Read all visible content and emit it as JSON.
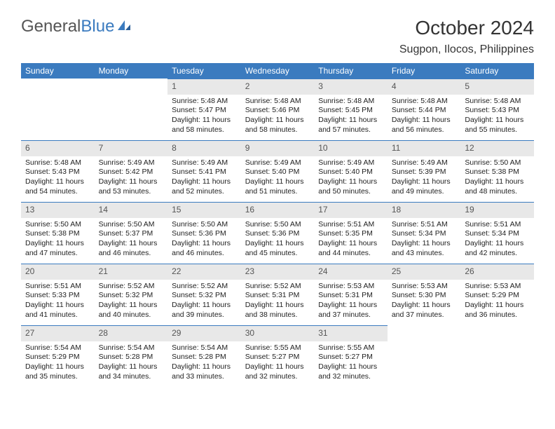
{
  "brand": {
    "part1": "General",
    "part2": "Blue"
  },
  "title": "October 2024",
  "location": "Sugpon, Ilocos, Philippines",
  "colors": {
    "header_bg": "#3b7bbf",
    "header_text": "#ffffff",
    "daynum_bg": "#e8e8e8",
    "border": "#3b7bbf",
    "page_bg": "#ffffff"
  },
  "dow": [
    "Sunday",
    "Monday",
    "Tuesday",
    "Wednesday",
    "Thursday",
    "Friday",
    "Saturday"
  ],
  "weeks": [
    [
      null,
      null,
      {
        "n": "1",
        "sr": "Sunrise: 5:48 AM",
        "ss": "Sunset: 5:47 PM",
        "dl": "Daylight: 11 hours and 58 minutes."
      },
      {
        "n": "2",
        "sr": "Sunrise: 5:48 AM",
        "ss": "Sunset: 5:46 PM",
        "dl": "Daylight: 11 hours and 58 minutes."
      },
      {
        "n": "3",
        "sr": "Sunrise: 5:48 AM",
        "ss": "Sunset: 5:45 PM",
        "dl": "Daylight: 11 hours and 57 minutes."
      },
      {
        "n": "4",
        "sr": "Sunrise: 5:48 AM",
        "ss": "Sunset: 5:44 PM",
        "dl": "Daylight: 11 hours and 56 minutes."
      },
      {
        "n": "5",
        "sr": "Sunrise: 5:48 AM",
        "ss": "Sunset: 5:43 PM",
        "dl": "Daylight: 11 hours and 55 minutes."
      }
    ],
    [
      {
        "n": "6",
        "sr": "Sunrise: 5:48 AM",
        "ss": "Sunset: 5:43 PM",
        "dl": "Daylight: 11 hours and 54 minutes."
      },
      {
        "n": "7",
        "sr": "Sunrise: 5:49 AM",
        "ss": "Sunset: 5:42 PM",
        "dl": "Daylight: 11 hours and 53 minutes."
      },
      {
        "n": "8",
        "sr": "Sunrise: 5:49 AM",
        "ss": "Sunset: 5:41 PM",
        "dl": "Daylight: 11 hours and 52 minutes."
      },
      {
        "n": "9",
        "sr": "Sunrise: 5:49 AM",
        "ss": "Sunset: 5:40 PM",
        "dl": "Daylight: 11 hours and 51 minutes."
      },
      {
        "n": "10",
        "sr": "Sunrise: 5:49 AM",
        "ss": "Sunset: 5:40 PM",
        "dl": "Daylight: 11 hours and 50 minutes."
      },
      {
        "n": "11",
        "sr": "Sunrise: 5:49 AM",
        "ss": "Sunset: 5:39 PM",
        "dl": "Daylight: 11 hours and 49 minutes."
      },
      {
        "n": "12",
        "sr": "Sunrise: 5:50 AM",
        "ss": "Sunset: 5:38 PM",
        "dl": "Daylight: 11 hours and 48 minutes."
      }
    ],
    [
      {
        "n": "13",
        "sr": "Sunrise: 5:50 AM",
        "ss": "Sunset: 5:38 PM",
        "dl": "Daylight: 11 hours and 47 minutes."
      },
      {
        "n": "14",
        "sr": "Sunrise: 5:50 AM",
        "ss": "Sunset: 5:37 PM",
        "dl": "Daylight: 11 hours and 46 minutes."
      },
      {
        "n": "15",
        "sr": "Sunrise: 5:50 AM",
        "ss": "Sunset: 5:36 PM",
        "dl": "Daylight: 11 hours and 46 minutes."
      },
      {
        "n": "16",
        "sr": "Sunrise: 5:50 AM",
        "ss": "Sunset: 5:36 PM",
        "dl": "Daylight: 11 hours and 45 minutes."
      },
      {
        "n": "17",
        "sr": "Sunrise: 5:51 AM",
        "ss": "Sunset: 5:35 PM",
        "dl": "Daylight: 11 hours and 44 minutes."
      },
      {
        "n": "18",
        "sr": "Sunrise: 5:51 AM",
        "ss": "Sunset: 5:34 PM",
        "dl": "Daylight: 11 hours and 43 minutes."
      },
      {
        "n": "19",
        "sr": "Sunrise: 5:51 AM",
        "ss": "Sunset: 5:34 PM",
        "dl": "Daylight: 11 hours and 42 minutes."
      }
    ],
    [
      {
        "n": "20",
        "sr": "Sunrise: 5:51 AM",
        "ss": "Sunset: 5:33 PM",
        "dl": "Daylight: 11 hours and 41 minutes."
      },
      {
        "n": "21",
        "sr": "Sunrise: 5:52 AM",
        "ss": "Sunset: 5:32 PM",
        "dl": "Daylight: 11 hours and 40 minutes."
      },
      {
        "n": "22",
        "sr": "Sunrise: 5:52 AM",
        "ss": "Sunset: 5:32 PM",
        "dl": "Daylight: 11 hours and 39 minutes."
      },
      {
        "n": "23",
        "sr": "Sunrise: 5:52 AM",
        "ss": "Sunset: 5:31 PM",
        "dl": "Daylight: 11 hours and 38 minutes."
      },
      {
        "n": "24",
        "sr": "Sunrise: 5:53 AM",
        "ss": "Sunset: 5:31 PM",
        "dl": "Daylight: 11 hours and 37 minutes."
      },
      {
        "n": "25",
        "sr": "Sunrise: 5:53 AM",
        "ss": "Sunset: 5:30 PM",
        "dl": "Daylight: 11 hours and 37 minutes."
      },
      {
        "n": "26",
        "sr": "Sunrise: 5:53 AM",
        "ss": "Sunset: 5:29 PM",
        "dl": "Daylight: 11 hours and 36 minutes."
      }
    ],
    [
      {
        "n": "27",
        "sr": "Sunrise: 5:54 AM",
        "ss": "Sunset: 5:29 PM",
        "dl": "Daylight: 11 hours and 35 minutes."
      },
      {
        "n": "28",
        "sr": "Sunrise: 5:54 AM",
        "ss": "Sunset: 5:28 PM",
        "dl": "Daylight: 11 hours and 34 minutes."
      },
      {
        "n": "29",
        "sr": "Sunrise: 5:54 AM",
        "ss": "Sunset: 5:28 PM",
        "dl": "Daylight: 11 hours and 33 minutes."
      },
      {
        "n": "30",
        "sr": "Sunrise: 5:55 AM",
        "ss": "Sunset: 5:27 PM",
        "dl": "Daylight: 11 hours and 32 minutes."
      },
      {
        "n": "31",
        "sr": "Sunrise: 5:55 AM",
        "ss": "Sunset: 5:27 PM",
        "dl": "Daylight: 11 hours and 32 minutes."
      },
      null,
      null
    ]
  ]
}
